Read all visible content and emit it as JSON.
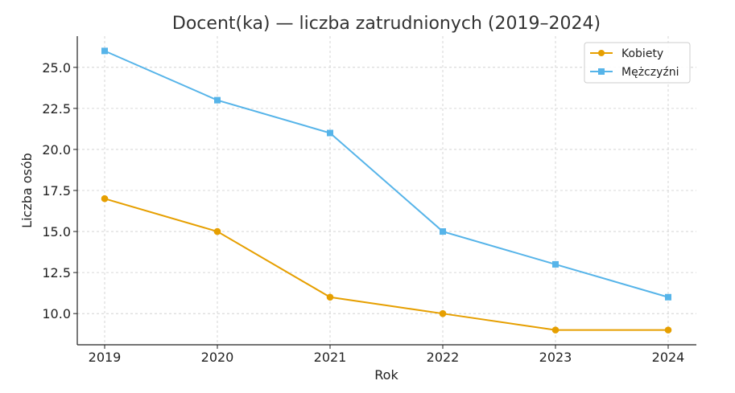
{
  "chart_data": {
    "type": "line",
    "title": "Docent(ka) — liczba zatrudnionych (2019–2024)",
    "xlabel": "Rok",
    "ylabel": "Liczba osób",
    "x": [
      2019,
      2020,
      2021,
      2022,
      2023,
      2024
    ],
    "x_tick_labels": [
      "2019",
      "2020",
      "2021",
      "2022",
      "2023",
      "2024"
    ],
    "y_ticks": [
      10.0,
      12.5,
      15.0,
      17.5,
      20.0,
      22.5,
      25.0
    ],
    "y_tick_labels": [
      "10.0",
      "12.5",
      "15.0",
      "17.5",
      "20.0",
      "22.5",
      "25.0"
    ],
    "ylim": [
      8.1,
      26.9
    ],
    "grid": true,
    "legend_position": "top-right",
    "series": [
      {
        "name": "Kobiety",
        "values": [
          17,
          15,
          11,
          10,
          9,
          9
        ],
        "color": "#E69F00",
        "marker": "circle"
      },
      {
        "name": "Mężczyźni",
        "values": [
          26,
          23,
          21,
          15,
          13,
          11
        ],
        "color": "#56B4E9",
        "marker": "square"
      }
    ]
  }
}
